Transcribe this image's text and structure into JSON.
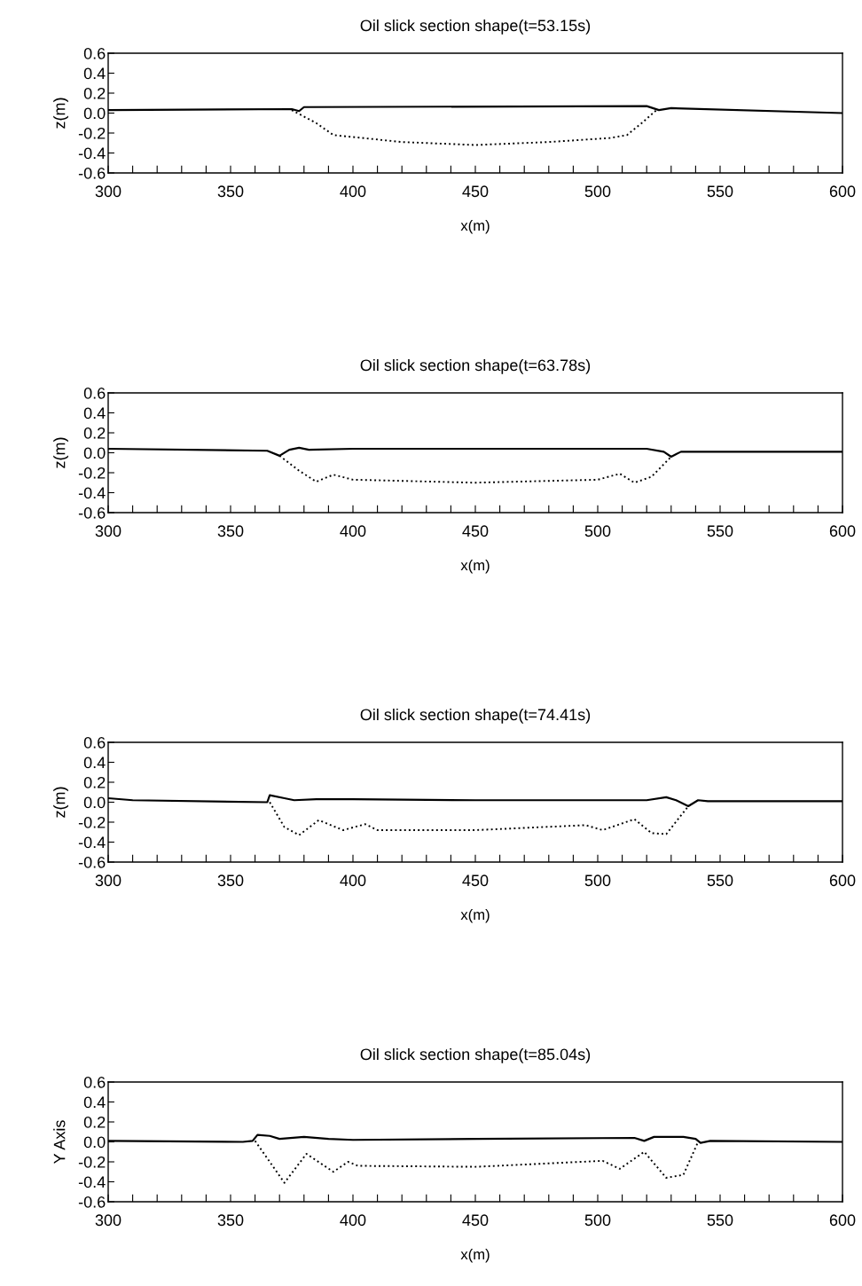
{
  "chart_data": [
    {
      "type": "line",
      "title": "Oil slick section shape(t=53.15s)",
      "xlabel": "x(m)",
      "ylabel": "z(m)",
      "xlim": [
        300,
        600
      ],
      "ylim": [
        -0.6,
        0.6
      ],
      "grid": false,
      "marker": "none",
      "xticks": [
        300,
        {
          "value": 310,
          "label": null
        },
        {
          "value": 320,
          "label": null
        },
        {
          "value": 330,
          "label": null
        },
        {
          "value": 340,
          "label": null
        },
        350,
        {
          "value": 360,
          "label": null
        },
        {
          "value": 370,
          "label": null
        },
        {
          "value": 380,
          "label": null
        },
        {
          "value": 390,
          "label": null
        },
        400,
        {
          "value": 410,
          "label": null
        },
        {
          "value": 420,
          "label": null
        },
        {
          "value": 430,
          "label": null
        },
        {
          "value": 440,
          "label": null
        },
        450,
        {
          "value": 460,
          "label": null
        },
        {
          "value": 470,
          "label": null
        },
        {
          "value": 480,
          "label": null
        },
        {
          "value": 490,
          "label": null
        },
        500,
        {
          "value": 510,
          "label": null
        },
        {
          "value": 520,
          "label": null
        },
        {
          "value": 530,
          "label": null
        },
        {
          "value": 540,
          "label": null
        },
        550,
        {
          "value": 560,
          "label": null
        },
        {
          "value": 570,
          "label": null
        },
        {
          "value": 580,
          "label": null
        },
        {
          "value": 590,
          "label": null
        },
        600
      ],
      "yticks": [
        {
          "value": 0.6,
          "label": "0.6"
        },
        {
          "value": 0.4,
          "label": "0.4"
        },
        {
          "value": 0.2,
          "label": "0.2"
        },
        {
          "value": 0,
          "label": "0.0"
        },
        {
          "value": -0.2,
          "label": "-0.2"
        },
        {
          "value": -0.4,
          "label": "-0.4"
        },
        {
          "value": -0.6,
          "label": "-0.6"
        }
      ],
      "series": [
        {
          "color": "#000000",
          "line_style": "solid",
          "x": [
            300,
            375,
            378,
            380,
            520,
            525,
            530,
            600
          ],
          "values": [
            0.03,
            0.04,
            0.02,
            0.06,
            0.07,
            0.03,
            0.05,
            0.0
          ]
        },
        {
          "color": "#000000",
          "line_style": "dotted",
          "x": [
            375,
            385,
            392,
            400,
            420,
            450,
            480,
            505,
            512,
            518,
            524
          ],
          "values": [
            0.03,
            -0.1,
            -0.22,
            -0.24,
            -0.29,
            -0.32,
            -0.29,
            -0.25,
            -0.22,
            -0.1,
            0.03
          ]
        }
      ]
    },
    {
      "type": "line",
      "title": "Oil slick section shape(t=63.78s)",
      "xlabel": "x(m)",
      "ylabel": "z(m)",
      "xlim": [
        300,
        600
      ],
      "ylim": [
        -0.6,
        0.6
      ],
      "grid": false,
      "marker": "none",
      "xticks": [
        300,
        {
          "value": 310,
          "label": null
        },
        {
          "value": 320,
          "label": null
        },
        {
          "value": 330,
          "label": null
        },
        {
          "value": 340,
          "label": null
        },
        350,
        {
          "value": 360,
          "label": null
        },
        {
          "value": 370,
          "label": null
        },
        {
          "value": 380,
          "label": null
        },
        {
          "value": 390,
          "label": null
        },
        400,
        {
          "value": 410,
          "label": null
        },
        {
          "value": 420,
          "label": null
        },
        {
          "value": 430,
          "label": null
        },
        {
          "value": 440,
          "label": null
        },
        450,
        {
          "value": 460,
          "label": null
        },
        {
          "value": 470,
          "label": null
        },
        {
          "value": 480,
          "label": null
        },
        {
          "value": 490,
          "label": null
        },
        500,
        {
          "value": 510,
          "label": null
        },
        {
          "value": 520,
          "label": null
        },
        {
          "value": 530,
          "label": null
        },
        {
          "value": 540,
          "label": null
        },
        550,
        {
          "value": 560,
          "label": null
        },
        {
          "value": 570,
          "label": null
        },
        {
          "value": 580,
          "label": null
        },
        {
          "value": 590,
          "label": null
        },
        600
      ],
      "yticks": [
        {
          "value": 0.6,
          "label": "0.6"
        },
        {
          "value": 0.4,
          "label": "0.4"
        },
        {
          "value": 0.2,
          "label": "0.2"
        },
        {
          "value": 0,
          "label": "0.0"
        },
        {
          "value": -0.2,
          "label": "-0.2"
        },
        {
          "value": -0.4,
          "label": "-0.4"
        },
        {
          "value": -0.6,
          "label": "-0.6"
        }
      ],
      "series": [
        {
          "color": "#000000",
          "line_style": "solid",
          "x": [
            300,
            365,
            370,
            374,
            378,
            382,
            400,
            450,
            520,
            527,
            530,
            534,
            600
          ],
          "values": [
            0.04,
            0.02,
            -0.03,
            0.03,
            0.05,
            0.03,
            0.04,
            0.04,
            0.04,
            0.01,
            -0.04,
            0.01,
            0.01
          ]
        },
        {
          "color": "#000000",
          "line_style": "dotted",
          "x": [
            370,
            378,
            385,
            392,
            400,
            450,
            500,
            509,
            515,
            522,
            530
          ],
          "values": [
            -0.03,
            -0.18,
            -0.29,
            -0.22,
            -0.27,
            -0.3,
            -0.27,
            -0.21,
            -0.3,
            -0.24,
            -0.04
          ]
        }
      ]
    },
    {
      "type": "line",
      "title": "Oil slick section shape(t=74.41s)",
      "xlabel": "x(m)",
      "ylabel": "z(m)",
      "xlim": [
        300,
        600
      ],
      "ylim": [
        -0.6,
        0.6
      ],
      "grid": false,
      "marker": "none",
      "xticks": [
        300,
        {
          "value": 310,
          "label": null
        },
        {
          "value": 320,
          "label": null
        },
        {
          "value": 330,
          "label": null
        },
        {
          "value": 340,
          "label": null
        },
        350,
        {
          "value": 360,
          "label": null
        },
        {
          "value": 370,
          "label": null
        },
        {
          "value": 380,
          "label": null
        },
        {
          "value": 390,
          "label": null
        },
        400,
        {
          "value": 410,
          "label": null
        },
        {
          "value": 420,
          "label": null
        },
        {
          "value": 430,
          "label": null
        },
        {
          "value": 440,
          "label": null
        },
        450,
        {
          "value": 460,
          "label": null
        },
        {
          "value": 470,
          "label": null
        },
        {
          "value": 480,
          "label": null
        },
        {
          "value": 490,
          "label": null
        },
        500,
        {
          "value": 510,
          "label": null
        },
        {
          "value": 520,
          "label": null
        },
        {
          "value": 530,
          "label": null
        },
        {
          "value": 540,
          "label": null
        },
        550,
        {
          "value": 560,
          "label": null
        },
        {
          "value": 570,
          "label": null
        },
        {
          "value": 580,
          "label": null
        },
        {
          "value": 590,
          "label": null
        },
        600
      ],
      "yticks": [
        {
          "value": 0.6,
          "label": "0.6"
        },
        {
          "value": 0.4,
          "label": "0.4"
        },
        {
          "value": 0.2,
          "label": "0.2"
        },
        {
          "value": 0,
          "label": "0.0"
        },
        {
          "value": -0.2,
          "label": "-0.2"
        },
        {
          "value": -0.4,
          "label": "-0.4"
        },
        {
          "value": -0.6,
          "label": "-0.6"
        }
      ],
      "series": [
        {
          "color": "#000000",
          "line_style": "solid",
          "x": [
            300,
            310,
            365,
            366,
            372,
            376,
            385,
            393,
            400,
            450,
            520,
            528,
            532,
            537,
            541,
            545,
            600
          ],
          "values": [
            0.04,
            0.02,
            0.0,
            0.07,
            0.04,
            0.02,
            0.03,
            0.03,
            0.03,
            0.02,
            0.02,
            0.05,
            0.02,
            -0.04,
            0.02,
            0.01,
            0.01
          ]
        },
        {
          "color": "#000000",
          "line_style": "dotted",
          "x": [
            366,
            372,
            378,
            386,
            396,
            405,
            410,
            450,
            495,
            502,
            515,
            522,
            528,
            537
          ],
          "values": [
            0.0,
            -0.25,
            -0.33,
            -0.18,
            -0.28,
            -0.22,
            -0.28,
            -0.28,
            -0.23,
            -0.28,
            -0.17,
            -0.31,
            -0.32,
            -0.04
          ]
        }
      ]
    },
    {
      "type": "line",
      "title": "Oil slick section shape(t=85.04s)",
      "xlabel": "x(m)",
      "ylabel": "Y Axis",
      "xlim": [
        300,
        600
      ],
      "ylim": [
        -0.6,
        0.6
      ],
      "grid": false,
      "marker": "none",
      "xticks": [
        300,
        {
          "value": 310,
          "label": null
        },
        {
          "value": 320,
          "label": null
        },
        {
          "value": 330,
          "label": null
        },
        {
          "value": 340,
          "label": null
        },
        350,
        {
          "value": 360,
          "label": null
        },
        {
          "value": 370,
          "label": null
        },
        {
          "value": 380,
          "label": null
        },
        {
          "value": 390,
          "label": null
        },
        400,
        {
          "value": 410,
          "label": null
        },
        {
          "value": 420,
          "label": null
        },
        {
          "value": 430,
          "label": null
        },
        {
          "value": 440,
          "label": null
        },
        450,
        {
          "value": 460,
          "label": null
        },
        {
          "value": 470,
          "label": null
        },
        {
          "value": 480,
          "label": null
        },
        {
          "value": 490,
          "label": null
        },
        500,
        {
          "value": 510,
          "label": null
        },
        {
          "value": 520,
          "label": null
        },
        {
          "value": 530,
          "label": null
        },
        {
          "value": 540,
          "label": null
        },
        550,
        {
          "value": 560,
          "label": null
        },
        {
          "value": 570,
          "label": null
        },
        {
          "value": 580,
          "label": null
        },
        {
          "value": 590,
          "label": null
        },
        600
      ],
      "yticks": [
        {
          "value": 0.6,
          "label": "0.6"
        },
        {
          "value": 0.4,
          "label": "0.4"
        },
        {
          "value": 0.2,
          "label": "0.2"
        },
        {
          "value": 0,
          "label": "0.0"
        },
        {
          "value": -0.2,
          "label": "-0.2"
        },
        {
          "value": -0.4,
          "label": "-0.4"
        },
        {
          "value": -0.6,
          "label": "-0.6"
        }
      ],
      "series": [
        {
          "color": "#000000",
          "line_style": "solid",
          "x": [
            300,
            355,
            359,
            361,
            366,
            370,
            380,
            390,
            400,
            450,
            515,
            519,
            523,
            535,
            540,
            542,
            546,
            600
          ],
          "values": [
            0.01,
            0.0,
            0.01,
            0.07,
            0.06,
            0.03,
            0.05,
            0.03,
            0.02,
            0.03,
            0.04,
            0.01,
            0.05,
            0.05,
            0.03,
            -0.01,
            0.01,
            0.0
          ]
        },
        {
          "color": "#000000",
          "line_style": "dotted",
          "x": [
            360,
            372,
            381,
            392,
            398,
            402,
            450,
            502,
            509,
            519,
            528,
            535,
            541
          ],
          "values": [
            0.01,
            -0.41,
            -0.12,
            -0.3,
            -0.2,
            -0.24,
            -0.25,
            -0.19,
            -0.27,
            -0.1,
            -0.36,
            -0.33,
            0.0
          ]
        }
      ]
    }
  ]
}
